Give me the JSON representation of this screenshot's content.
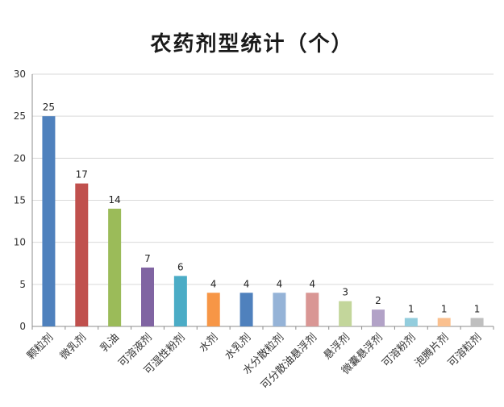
{
  "chart_data": {
    "type": "bar",
    "title": "农药剂型统计（个）",
    "categories": [
      "颗粒剂",
      "微乳剂",
      "乳油",
      "可溶液剂",
      "可湿性粉剂",
      "水剂",
      "水乳剂",
      "水分散粒剂",
      "可分散油悬浮剂",
      "悬浮剂",
      "微囊悬浮剂",
      "可溶粉剂",
      "泡腾片剂",
      "可溶粒剂"
    ],
    "values": [
      25,
      17,
      14,
      7,
      6,
      4,
      4,
      4,
      4,
      3,
      2,
      1,
      1,
      1
    ],
    "colors": [
      "#4f81bd",
      "#c0504d",
      "#9bbb59",
      "#8064a2",
      "#4bacc6",
      "#f79646",
      "#4f81bd",
      "#95b3d7",
      "#d99694",
      "#c3d69b",
      "#b2a2c7",
      "#93cddd",
      "#fac08f",
      "#bfbfbf"
    ],
    "ylim": [
      0,
      30
    ],
    "yticks": [
      0,
      5,
      10,
      15,
      20,
      25,
      30
    ],
    "grid": true,
    "legend": "none"
  }
}
